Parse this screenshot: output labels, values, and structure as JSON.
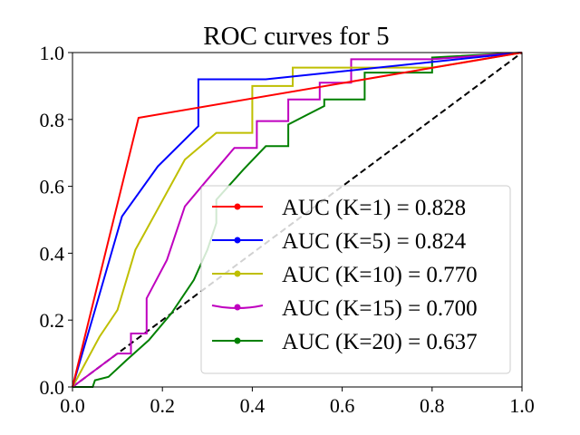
{
  "chart_data": {
    "type": "line",
    "title": "ROC curves for 5",
    "xlabel": "",
    "ylabel": "",
    "xlim": [
      0.0,
      1.0
    ],
    "ylim": [
      0.0,
      1.0
    ],
    "x_ticks": [
      "0.0",
      "0.2",
      "0.4",
      "0.6",
      "0.8",
      "1.0"
    ],
    "y_ticks": [
      "0.0",
      "0.2",
      "0.4",
      "0.6",
      "0.8",
      "1.0"
    ],
    "grid": false,
    "legend_position": "lower-right",
    "diagonal": {
      "x": [
        0.0,
        1.0
      ],
      "y": [
        0.0,
        1.0
      ],
      "color": "#000000",
      "style": "dashed"
    },
    "series": [
      {
        "name": "AUC (K=1) = 0.828",
        "color": "#ff0000",
        "x": [
          0.0,
          0.147,
          1.0
        ],
        "y": [
          0.0,
          0.805,
          1.0
        ]
      },
      {
        "name": "AUC (K=5) = 0.824",
        "color": "#0000ff",
        "x": [
          0.0,
          0.05,
          0.11,
          0.19,
          0.28,
          0.28,
          0.43,
          1.0
        ],
        "y": [
          0.0,
          0.23,
          0.51,
          0.66,
          0.78,
          0.92,
          0.92,
          1.0
        ]
      },
      {
        "name": "AUC (K=10) = 0.770",
        "color": "#bfbf00",
        "x": [
          0.0,
          0.06,
          0.1,
          0.14,
          0.25,
          0.32,
          0.4,
          0.4,
          0.49,
          0.49,
          0.8,
          1.0
        ],
        "y": [
          0.0,
          0.15,
          0.23,
          0.41,
          0.68,
          0.76,
          0.76,
          0.9,
          0.9,
          0.955,
          0.955,
          1.0
        ]
      },
      {
        "name": "AUC (K=15) = 0.700",
        "color": "#bf00bf",
        "x": [
          0.0,
          0.1,
          0.13,
          0.13,
          0.165,
          0.165,
          0.21,
          0.25,
          0.3,
          0.36,
          0.41,
          0.41,
          0.48,
          0.48,
          0.55,
          0.55,
          0.62,
          0.62,
          0.8,
          1.0
        ],
        "y": [
          0.0,
          0.1,
          0.1,
          0.16,
          0.16,
          0.265,
          0.38,
          0.54,
          0.62,
          0.715,
          0.715,
          0.795,
          0.795,
          0.86,
          0.86,
          0.91,
          0.91,
          0.98,
          0.98,
          1.0
        ],
        "curved_legend_key": true
      },
      {
        "name": "AUC (K=20) = 0.637",
        "color": "#008000",
        "x": [
          0.0,
          0.045,
          0.05,
          0.08,
          0.12,
          0.17,
          0.22,
          0.27,
          0.3,
          0.32,
          0.32,
          0.38,
          0.43,
          0.48,
          0.48,
          0.56,
          0.56,
          0.65,
          0.65,
          0.8,
          0.8,
          1.0
        ],
        "y": [
          0.0,
          0.0,
          0.02,
          0.03,
          0.08,
          0.14,
          0.22,
          0.32,
          0.41,
          0.49,
          0.56,
          0.65,
          0.72,
          0.72,
          0.785,
          0.84,
          0.86,
          0.86,
          0.94,
          0.94,
          0.985,
          1.0
        ]
      }
    ]
  }
}
